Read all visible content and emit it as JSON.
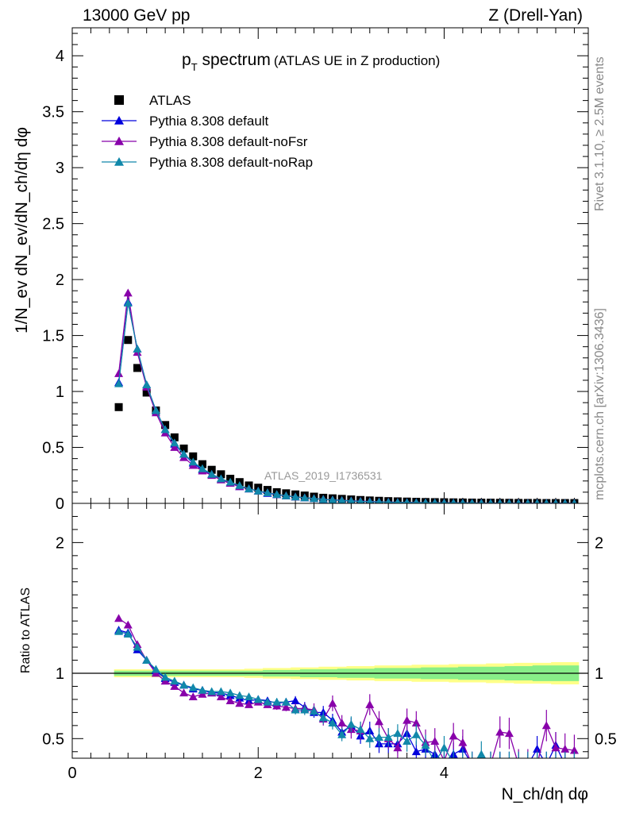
{
  "header": {
    "left": "13000 GeV pp",
    "right": "Z (Drell-Yan)"
  },
  "side_labels": {
    "rivet": "Rivet 3.1.10, ≥ 2.5M events",
    "mcplots": "mcplots.cern.ch [arXiv:1306.3436]"
  },
  "chart_data": [
    {
      "type": "scatter",
      "title_main": "p",
      "title_sub": "T",
      "title_main2": " spectrum",
      "title_extra": "(ATLAS UE in Z production)",
      "watermark": "ATLAS_2019_I1736531",
      "ylabel": "1/N_ev dN_ev/dN_ch/dη dφ",
      "ylim": [
        0,
        4.25
      ],
      "xlim": [
        0,
        5.55
      ],
      "yticks": [
        "0",
        "0.5",
        "1",
        "1.5",
        "2",
        "2.5",
        "3",
        "3.5",
        "4"
      ],
      "legend": [
        "ATLAS",
        "Pythia 8.308 default",
        "Pythia 8.308 default-noFsr",
        "Pythia 8.308 default-noRap"
      ],
      "x": [
        0.5,
        0.6,
        0.7,
        0.8,
        0.9,
        1.0,
        1.1,
        1.2,
        1.3,
        1.4,
        1.5,
        1.6,
        1.7,
        1.8,
        1.9,
        2.0,
        2.1,
        2.2,
        2.3,
        2.4,
        2.5,
        2.6,
        2.7,
        2.8,
        2.9,
        3.0,
        3.1,
        3.2,
        3.3,
        3.4,
        3.5,
        3.6,
        3.7,
        3.8,
        3.9,
        4.0,
        4.1,
        4.2,
        4.3,
        4.4,
        4.5,
        4.6,
        4.7,
        4.8,
        4.9,
        5.0,
        5.1,
        5.2,
        5.3,
        5.4
      ],
      "series": [
        {
          "name": "ATLAS",
          "color": "#000000",
          "marker": "square",
          "values": [
            0.86,
            1.46,
            1.21,
            0.99,
            0.83,
            0.7,
            0.59,
            0.49,
            0.42,
            0.35,
            0.3,
            0.26,
            0.22,
            0.19,
            0.16,
            0.14,
            0.12,
            0.1,
            0.09,
            0.08,
            0.07,
            0.06,
            0.05,
            0.045,
            0.04,
            0.035,
            0.03,
            0.026,
            0.023,
            0.02,
            0.018,
            0.016,
            0.014,
            0.012,
            0.011,
            0.01,
            0.009,
            0.008,
            0.007,
            0.006,
            0.006,
            0.005,
            0.005,
            0.004,
            0.004,
            0.004,
            0.003,
            0.003,
            0.003,
            0.003
          ]
        },
        {
          "name": "Pythia 8.308 default",
          "color": "#0000dd",
          "marker": "triangle",
          "values": [
            1.08,
            1.8,
            1.38,
            1.06,
            0.83,
            0.66,
            0.53,
            0.44,
            0.36,
            0.3,
            0.26,
            0.22,
            0.18,
            0.15,
            0.13,
            0.11,
            0.09,
            0.078,
            0.067,
            0.058,
            0.05,
            0.043,
            0.036,
            0.031,
            0.026,
            0.022,
            0.019,
            0.016,
            0.013,
            0.011,
            0.009,
            0.008,
            0.007,
            0.006,
            0.005,
            0.004,
            0.004,
            0.003,
            0.003,
            0.002,
            0.002,
            0.002,
            0.002,
            0.001,
            0.001,
            0.001,
            0.001,
            0.001,
            0.001,
            0.001
          ]
        },
        {
          "name": "Pythia 8.308 default-noFsr",
          "color": "#8800aa",
          "marker": "triangle",
          "values": [
            1.16,
            1.88,
            1.35,
            1.04,
            0.81,
            0.63,
            0.5,
            0.41,
            0.34,
            0.29,
            0.25,
            0.21,
            0.18,
            0.15,
            0.13,
            0.11,
            0.095,
            0.08,
            0.068,
            0.058,
            0.05,
            0.043,
            0.037,
            0.032,
            0.027,
            0.023,
            0.02,
            0.017,
            0.014,
            0.012,
            0.01,
            0.009,
            0.008,
            0.006,
            0.005,
            0.005,
            0.004,
            0.003,
            0.003,
            0.003,
            0.002,
            0.002,
            0.002,
            0.002,
            0.001,
            0.001,
            0.001,
            0.001,
            0.001,
            0.001
          ]
        },
        {
          "name": "Pythia 8.308 default-noRap",
          "color": "#1188aa",
          "marker": "triangle",
          "values": [
            1.07,
            1.79,
            1.38,
            1.06,
            0.83,
            0.66,
            0.54,
            0.44,
            0.37,
            0.31,
            0.26,
            0.22,
            0.19,
            0.16,
            0.13,
            0.11,
            0.095,
            0.08,
            0.068,
            0.058,
            0.05,
            0.043,
            0.036,
            0.031,
            0.026,
            0.022,
            0.018,
            0.015,
            0.013,
            0.011,
            0.009,
            0.008,
            0.007,
            0.006,
            0.005,
            0.004,
            0.004,
            0.003,
            0.003,
            0.002,
            0.002,
            0.002,
            0.002,
            0.001,
            0.001,
            0.001,
            0.001,
            0.001,
            0.001,
            0.001
          ]
        }
      ]
    },
    {
      "type": "scatter",
      "ylabel": "Ratio to ATLAS",
      "xlabel": "N_ch/dη dφ",
      "ylim": [
        0.35,
        2.3
      ],
      "xlim": [
        0,
        5.55
      ],
      "yticks": [
        "0.5",
        "1",
        "2"
      ],
      "xticks": [
        "0",
        "2",
        "4"
      ],
      "x": [
        0.5,
        0.6,
        0.7,
        0.8,
        0.9,
        1.0,
        1.1,
        1.2,
        1.3,
        1.4,
        1.5,
        1.6,
        1.7,
        1.8,
        1.9,
        2.0,
        2.1,
        2.2,
        2.3,
        2.4,
        2.5,
        2.6,
        2.7,
        2.8,
        2.9,
        3.0,
        3.1,
        3.2,
        3.3,
        3.4,
        3.5,
        3.6,
        3.7,
        3.8,
        3.9,
        4.0,
        4.1,
        4.2,
        4.3,
        4.4,
        4.5,
        4.6,
        4.7,
        4.8,
        4.9,
        5.0,
        5.1,
        5.2,
        5.3,
        5.4
      ],
      "band_inner": [
        0.02,
        0.02,
        0.02,
        0.02,
        0.02,
        0.02,
        0.02,
        0.02,
        0.02,
        0.02,
        0.02,
        0.02,
        0.02,
        0.02,
        0.02,
        0.02,
        0.025,
        0.025,
        0.025,
        0.025,
        0.03,
        0.03,
        0.03,
        0.03,
        0.035,
        0.035,
        0.035,
        0.035,
        0.04,
        0.04,
        0.04,
        0.04,
        0.04,
        0.045,
        0.045,
        0.045,
        0.045,
        0.05,
        0.05,
        0.05,
        0.05,
        0.05,
        0.055,
        0.055,
        0.055,
        0.06,
        0.06,
        0.06,
        0.06,
        0.06
      ],
      "band_outer": [
        0.03,
        0.03,
        0.03,
        0.03,
        0.03,
        0.03,
        0.03,
        0.03,
        0.03,
        0.03,
        0.03,
        0.03,
        0.03,
        0.03,
        0.035,
        0.035,
        0.04,
        0.04,
        0.04,
        0.045,
        0.045,
        0.045,
        0.05,
        0.05,
        0.05,
        0.055,
        0.055,
        0.055,
        0.06,
        0.06,
        0.06,
        0.06,
        0.065,
        0.065,
        0.065,
        0.065,
        0.07,
        0.07,
        0.07,
        0.07,
        0.075,
        0.075,
        0.075,
        0.08,
        0.08,
        0.08,
        0.08,
        0.085,
        0.085,
        0.085
      ],
      "series": [
        {
          "name": "Pythia 8.308 default",
          "color": "#0000dd",
          "values": [
            1.33,
            1.31,
            1.18,
            1.1,
            1.02,
            0.96,
            0.93,
            0.91,
            0.88,
            0.87,
            0.85,
            0.85,
            0.83,
            0.81,
            0.79,
            0.8,
            0.79,
            0.77,
            0.78,
            0.79,
            0.74,
            0.7,
            0.7,
            0.64,
            0.55,
            0.6,
            0.52,
            0.56,
            0.46,
            0.46,
            0.46,
            0.54,
            0.4,
            0.42,
            0.38,
            0.32,
            0.38,
            0.42,
            0.3,
            0.3,
            0.3,
            0.3,
            0.3,
            0.3,
            0.3,
            0.42,
            0.3,
            0.45,
            0.3,
            0.3
          ],
          "errors": [
            0.02,
            0.02,
            0.02,
            0.02,
            0.02,
            0.02,
            0.02,
            0.02,
            0.02,
            0.02,
            0.02,
            0.02,
            0.02,
            0.02,
            0.02,
            0.025,
            0.025,
            0.03,
            0.03,
            0.035,
            0.04,
            0.04,
            0.05,
            0.05,
            0.05,
            0.06,
            0.06,
            0.07,
            0.07,
            0.07,
            0.07,
            0.08,
            0.08,
            0.08,
            0.09,
            0.09,
            0.09,
            0.1,
            0.1,
            0.1,
            0.1,
            0.1,
            0.1,
            0.1,
            0.1,
            0.1,
            0.1,
            0.1,
            0.1,
            0.1
          ]
        },
        {
          "name": "Pythia 8.308 default-noFsr",
          "color": "#8800aa",
          "values": [
            1.42,
            1.37,
            1.22,
            1.1,
            1.0,
            0.94,
            0.9,
            0.85,
            0.82,
            0.84,
            0.85,
            0.82,
            0.79,
            0.77,
            0.76,
            0.78,
            0.76,
            0.75,
            0.74,
            0.73,
            0.73,
            0.72,
            0.65,
            0.77,
            0.62,
            0.57,
            0.56,
            0.76,
            0.63,
            0.5,
            0.43,
            0.64,
            0.62,
            0.47,
            0.48,
            0.33,
            0.52,
            0.47,
            0.3,
            0.3,
            0.3,
            0.55,
            0.54,
            0.3,
            0.3,
            0.3,
            0.6,
            0.43,
            0.42,
            0.41
          ],
          "errors": [
            0.02,
            0.02,
            0.02,
            0.02,
            0.02,
            0.02,
            0.02,
            0.02,
            0.02,
            0.02,
            0.02,
            0.02,
            0.02,
            0.02,
            0.02,
            0.025,
            0.025,
            0.03,
            0.03,
            0.04,
            0.04,
            0.05,
            0.05,
            0.06,
            0.06,
            0.07,
            0.07,
            0.08,
            0.08,
            0.08,
            0.08,
            0.09,
            0.09,
            0.1,
            0.1,
            0.1,
            0.1,
            0.1,
            0.1,
            0.1,
            0.1,
            0.12,
            0.12,
            0.12,
            0.12,
            0.12,
            0.12,
            0.12,
            0.12,
            0.12
          ]
        },
        {
          "name": "Pythia 8.308 default-noRap",
          "color": "#1188aa",
          "values": [
            1.32,
            1.3,
            1.2,
            1.1,
            1.03,
            0.97,
            0.94,
            0.91,
            0.89,
            0.87,
            0.86,
            0.86,
            0.85,
            0.83,
            0.82,
            0.8,
            0.78,
            0.78,
            0.78,
            0.72,
            0.72,
            0.71,
            0.66,
            0.62,
            0.53,
            0.61,
            0.57,
            0.5,
            0.51,
            0.51,
            0.54,
            0.48,
            0.53,
            0.45,
            0.32,
            0.43,
            0.32,
            0.32,
            0.3,
            0.38,
            0.3,
            0.3,
            0.3,
            0.3,
            0.3,
            0.3,
            0.3,
            0.3,
            0.3,
            0.3
          ],
          "errors": [
            0.02,
            0.02,
            0.02,
            0.02,
            0.02,
            0.02,
            0.02,
            0.02,
            0.02,
            0.02,
            0.02,
            0.02,
            0.02,
            0.02,
            0.02,
            0.025,
            0.025,
            0.03,
            0.03,
            0.035,
            0.04,
            0.04,
            0.05,
            0.05,
            0.05,
            0.06,
            0.06,
            0.07,
            0.07,
            0.07,
            0.07,
            0.08,
            0.08,
            0.08,
            0.09,
            0.09,
            0.09,
            0.1,
            0.1,
            0.1,
            0.1,
            0.1,
            0.1,
            0.1,
            0.1,
            0.1,
            0.1,
            0.1,
            0.1,
            0.1
          ]
        }
      ]
    }
  ]
}
